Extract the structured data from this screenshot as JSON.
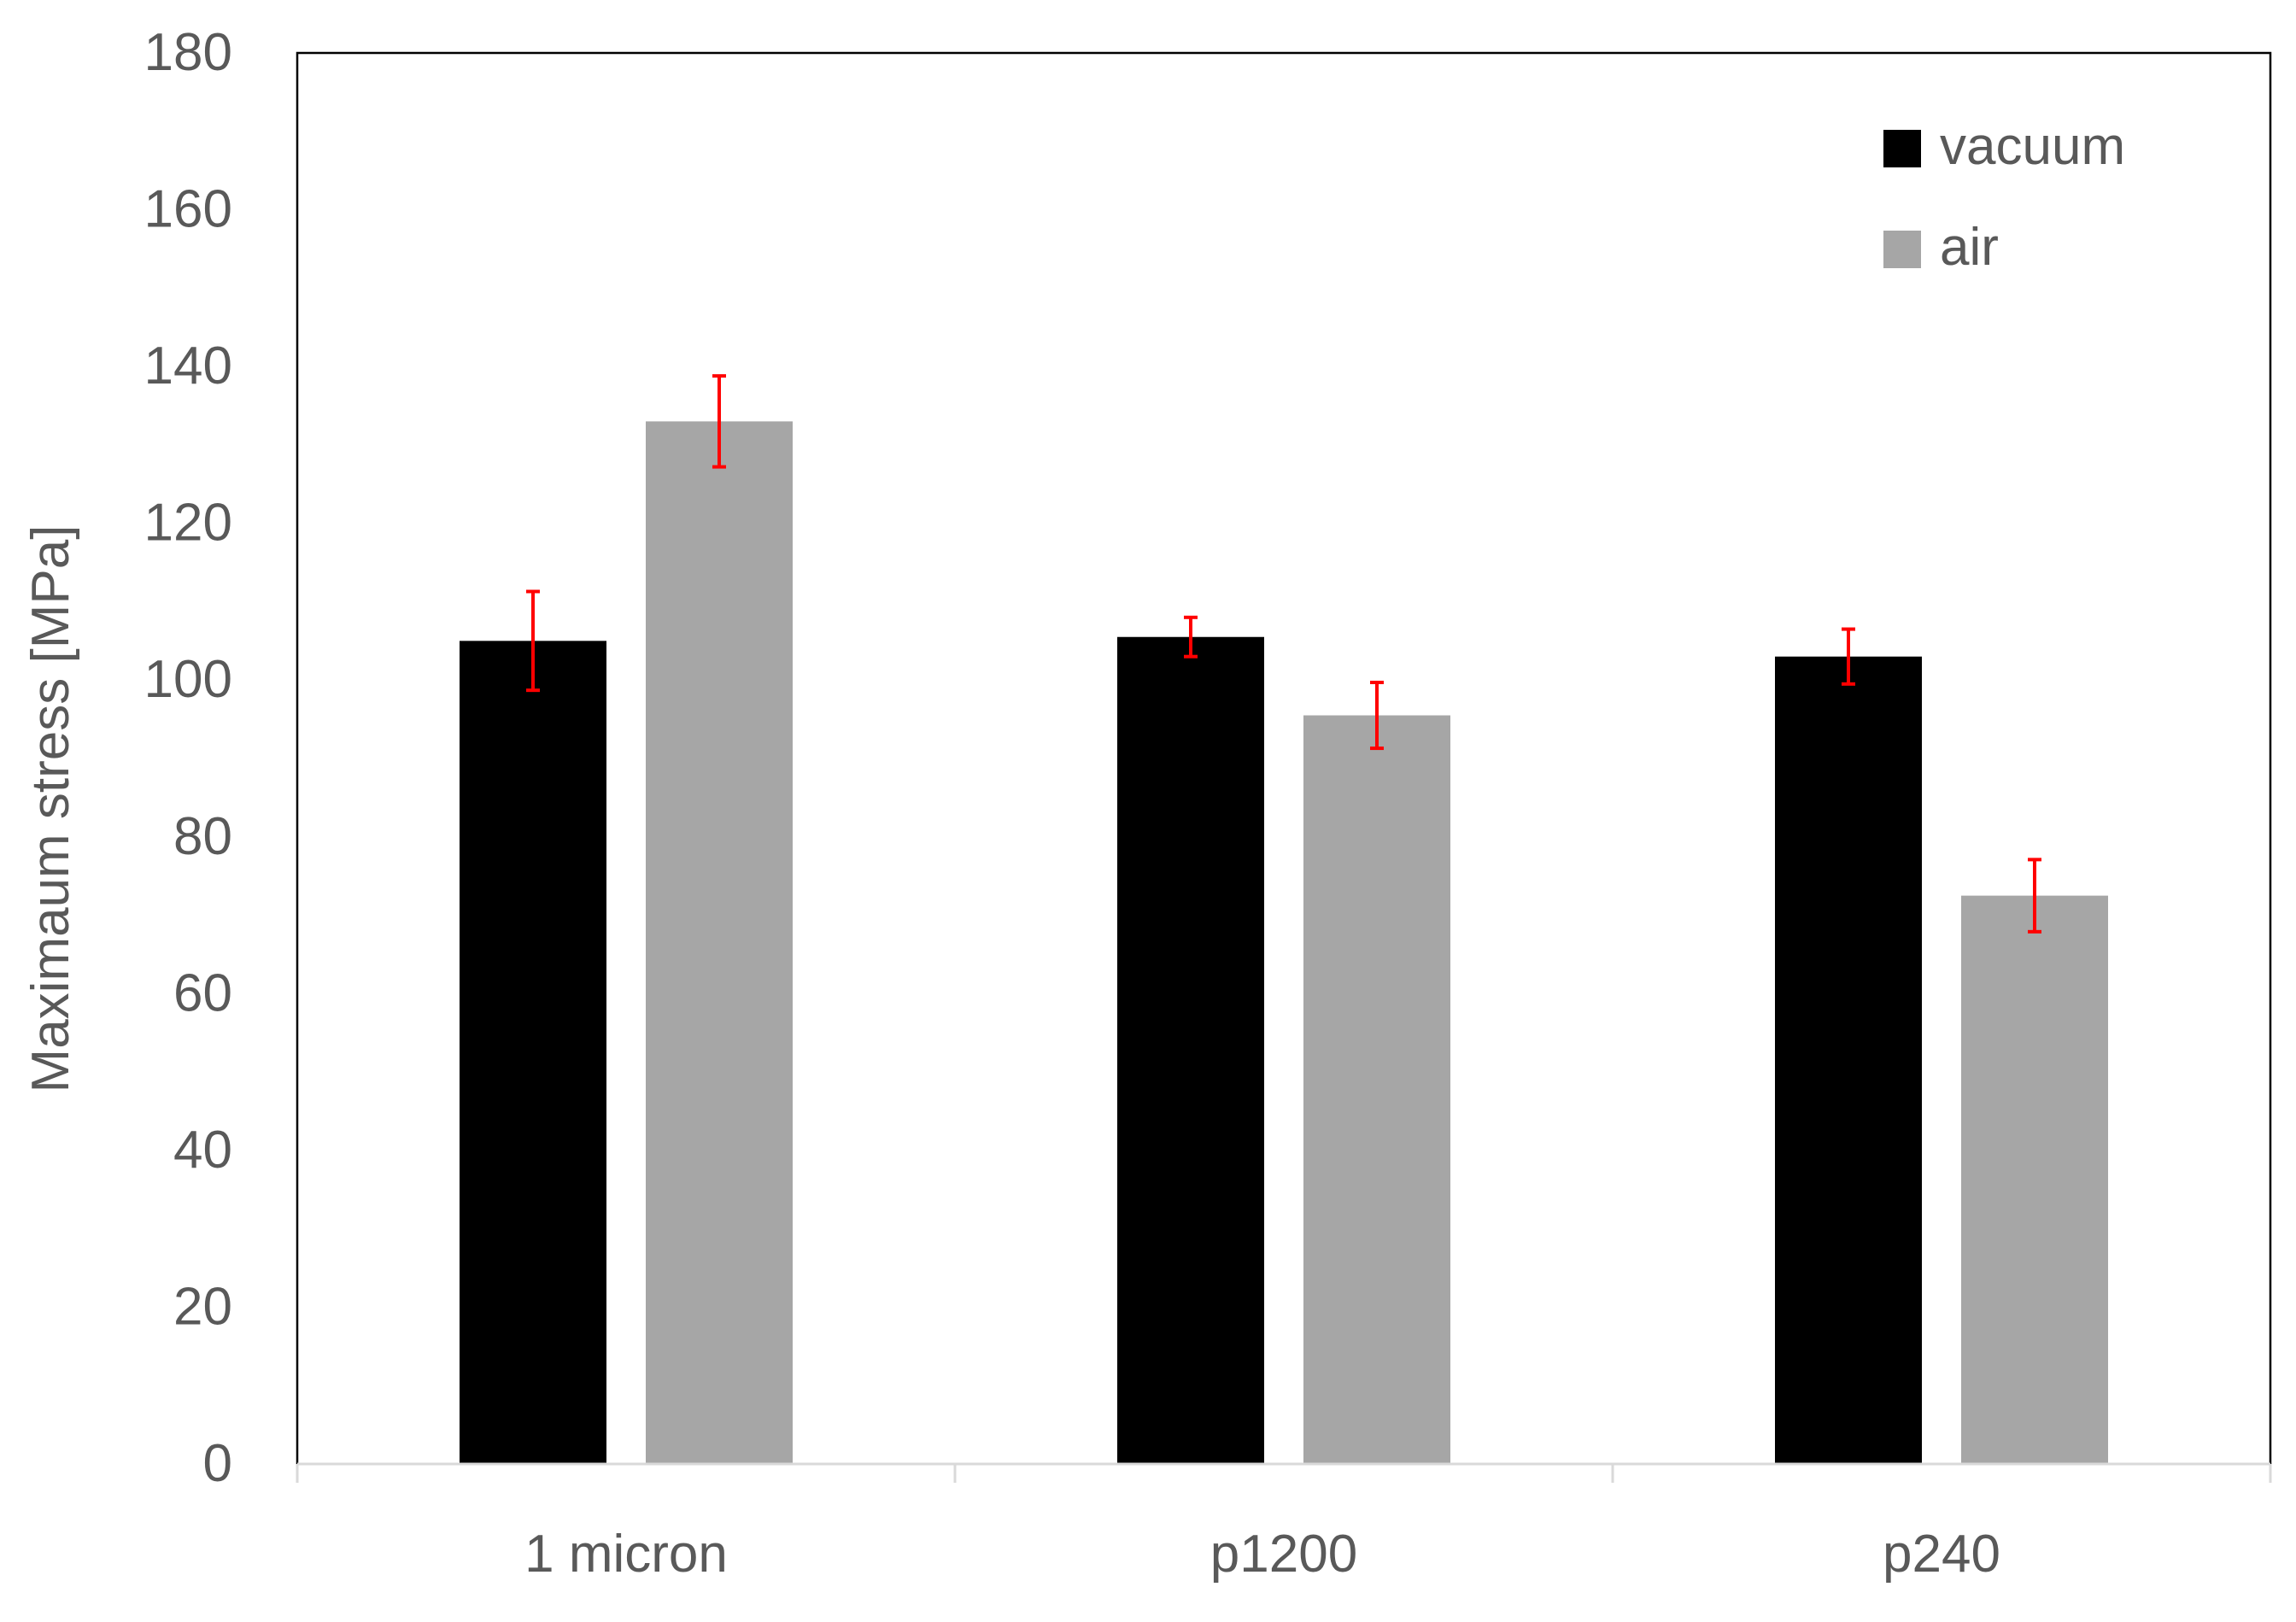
{
  "chart_data": {
    "type": "bar",
    "title": "",
    "xlabel": "",
    "ylabel": "Maximaum stress [MPa]",
    "ylim": [
      0,
      180
    ],
    "yticks": [
      0,
      20,
      40,
      60,
      80,
      100,
      120,
      140,
      160,
      180
    ],
    "categories": [
      "1 micron",
      "p1200",
      "p240"
    ],
    "series": [
      {
        "name": "vacuum",
        "color": "#000000",
        "values": [
          105,
          105.5,
          103
        ],
        "error": [
          6.3,
          2.5,
          3.5
        ]
      },
      {
        "name": "air",
        "color": "#a6a6a6",
        "values": [
          133,
          95.5,
          72.5
        ],
        "error": [
          5.8,
          4.2,
          4.6
        ]
      }
    ],
    "error_bar_color": "#ff0000",
    "legend_position": "top-right",
    "grid": false
  }
}
